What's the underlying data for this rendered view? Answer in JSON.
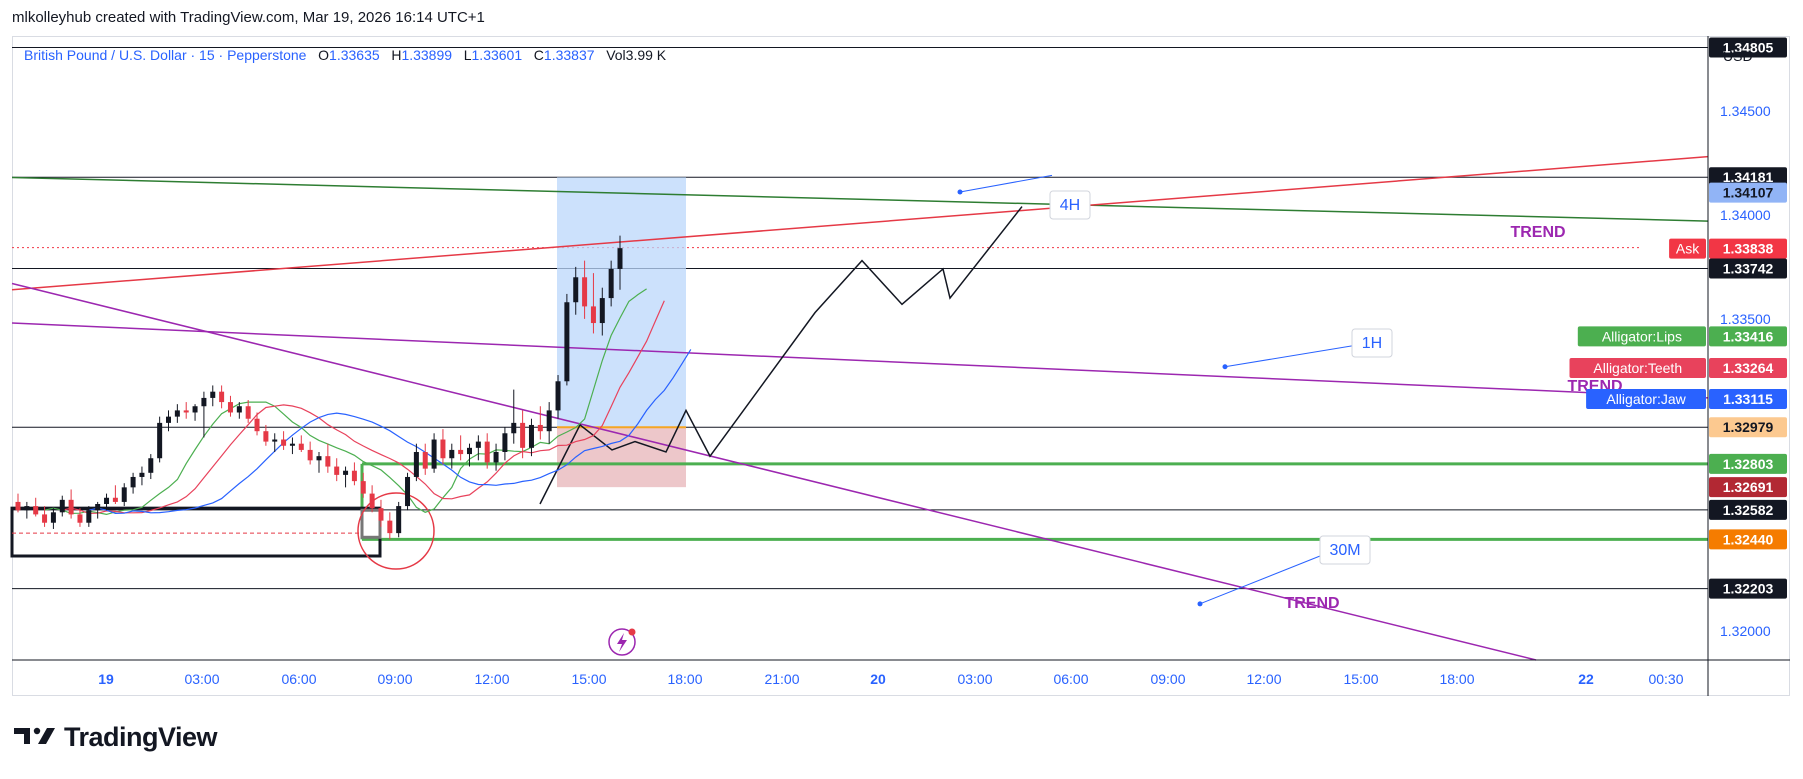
{
  "header": {
    "attribution": "mlkolleyhub created with TradingView.com, Mar 19, 2026 16:14 UTC+1"
  },
  "legend": {
    "symbol": "British Pound / U.S. Dollar · 15 · Pepperstone",
    "o_label": "O",
    "o_value": "1.33635",
    "h_label": "H",
    "h_value": "1.33899",
    "l_label": "L",
    "l_value": "1.33601",
    "c_label": "C",
    "c_value": "1.33837",
    "vol_label": "Vol",
    "vol_value": "3.99 K"
  },
  "price_axis": {
    "currency": "USD"
  },
  "brand": {
    "name": "TradingView"
  },
  "colors": {
    "candle_up": "#131722",
    "candle_down": "#e53946",
    "alligator_lips": "#4caf50",
    "alligator_teeth": "#e8425c",
    "alligator_jaw": "#2962ff",
    "trend_purple": "#9c27b0",
    "trend_red": "#e53946",
    "trend_green": "#2e7d32",
    "zone_green": "#4caf50",
    "long_position_blue": "#bbd7fb",
    "long_position_red": "#e8b9bd"
  },
  "chart_data": {
    "type": "candlestick",
    "symbol": "GBPUSD",
    "interval": "15",
    "ylim": [
      1.3186,
      1.3486
    ],
    "x_ticks": [
      "19",
      "03:00",
      "06:00",
      "09:00",
      "12:00",
      "15:00",
      "18:00",
      "21:00",
      "20",
      "03:00",
      "06:00",
      "09:00",
      "12:00",
      "15:00",
      "18:00",
      "22",
      "00:30"
    ],
    "y_ticks": [
      "1.34500",
      "1.34000",
      "1.33500",
      "1.32000"
    ],
    "price_labels": [
      {
        "value": 1.34805,
        "text": "1.34805",
        "bg": "#131722",
        "fg": "#ffffff"
      },
      {
        "value": 1.34181,
        "text": "1.34181",
        "bg": "#131722",
        "fg": "#ffffff"
      },
      {
        "value": 1.34107,
        "text": "1.34107",
        "bg": "#91b4f6",
        "fg": "#131722"
      },
      {
        "value": 1.33838,
        "text": "1.33838",
        "bg": "#f23645",
        "fg": "#ffffff",
        "tag": "Ask"
      },
      {
        "value": 1.33742,
        "text": "1.33742",
        "bg": "#131722",
        "fg": "#ffffff"
      },
      {
        "value": 1.33416,
        "text": "1.33416",
        "bg": "#4caf50",
        "fg": "#ffffff",
        "tag": "Alligator:Lips"
      },
      {
        "value": 1.33264,
        "text": "1.33264",
        "bg": "#e8425c",
        "fg": "#ffffff",
        "tag": "Alligator:Teeth"
      },
      {
        "value": 1.33115,
        "text": "1.33115",
        "bg": "#2962ff",
        "fg": "#ffffff",
        "tag": "Alligator:Jaw"
      },
      {
        "value": 1.32979,
        "text": "1.32979",
        "bg": "#fcc990",
        "fg": "#131722"
      },
      {
        "value": 1.32803,
        "text": "1.32803",
        "bg": "#4caf50",
        "fg": "#ffffff"
      },
      {
        "value": 1.32691,
        "text": "1.32691",
        "bg": "#b22833",
        "fg": "#ffffff"
      },
      {
        "value": 1.32582,
        "text": "1.32582",
        "bg": "#131722",
        "fg": "#ffffff"
      },
      {
        "value": 1.3244,
        "text": "1.32440",
        "bg": "#f57c00",
        "fg": "#ffffff"
      },
      {
        "value": 1.32203,
        "text": "1.32203",
        "bg": "#131722",
        "fg": "#ffffff"
      }
    ],
    "horizontal_levels": [
      1.34805,
      1.34181,
      1.33742,
      1.32979,
      1.32582,
      1.32203
    ],
    "zone_lines": [
      1.32803,
      1.3244
    ],
    "annotations": [
      {
        "text": "4H",
        "kind": "timeframe"
      },
      {
        "text": "1H",
        "kind": "timeframe"
      },
      {
        "text": "30M",
        "kind": "timeframe"
      },
      {
        "text": "TREND",
        "kind": "trend"
      },
      {
        "text": "TREND",
        "kind": "trend"
      },
      {
        "text": "TREND",
        "kind": "trend"
      }
    ],
    "candles": [
      [
        1.3262,
        1.3266,
        1.3257,
        1.3258
      ],
      [
        1.3258,
        1.3262,
        1.3254,
        1.326
      ],
      [
        1.326,
        1.3264,
        1.3255,
        1.3256
      ],
      [
        1.3256,
        1.326,
        1.325,
        1.3252
      ],
      [
        1.3252,
        1.3259,
        1.3249,
        1.3257
      ],
      [
        1.3257,
        1.3265,
        1.3255,
        1.3263
      ],
      [
        1.3263,
        1.3268,
        1.3254,
        1.3256
      ],
      [
        1.3256,
        1.3259,
        1.325,
        1.3252
      ],
      [
        1.3252,
        1.326,
        1.325,
        1.3258
      ],
      [
        1.3258,
        1.3262,
        1.3254,
        1.3261
      ],
      [
        1.3261,
        1.3266,
        1.3258,
        1.3264
      ],
      [
        1.3264,
        1.327,
        1.3261,
        1.3262
      ],
      [
        1.3262,
        1.3271,
        1.326,
        1.3269
      ],
      [
        1.3269,
        1.3276,
        1.3266,
        1.3274
      ],
      [
        1.3274,
        1.3279,
        1.327,
        1.3276
      ],
      [
        1.3276,
        1.3285,
        1.3273,
        1.3283
      ],
      [
        1.3283,
        1.3303,
        1.3281,
        1.33
      ],
      [
        1.33,
        1.3306,
        1.3296,
        1.3303
      ],
      [
        1.3303,
        1.3309,
        1.33,
        1.3306
      ],
      [
        1.3306,
        1.331,
        1.3302,
        1.3305
      ],
      [
        1.3305,
        1.3309,
        1.3301,
        1.3308
      ],
      [
        1.3308,
        1.3315,
        1.3293,
        1.3312
      ],
      [
        1.3312,
        1.3318,
        1.3308,
        1.3315
      ],
      [
        1.3315,
        1.3318,
        1.3307,
        1.331
      ],
      [
        1.331,
        1.3313,
        1.3303,
        1.3305
      ],
      [
        1.3305,
        1.331,
        1.3302,
        1.3308
      ],
      [
        1.3308,
        1.3311,
        1.33,
        1.3302
      ],
      [
        1.3302,
        1.3305,
        1.3294,
        1.3296
      ],
      [
        1.3296,
        1.3299,
        1.3289,
        1.3291
      ],
      [
        1.3291,
        1.3295,
        1.3286,
        1.3292
      ],
      [
        1.3292,
        1.3296,
        1.3287,
        1.3289
      ],
      [
        1.3289,
        1.3293,
        1.3285,
        1.329
      ],
      [
        1.329,
        1.3294,
        1.3286,
        1.3287
      ],
      [
        1.3287,
        1.3291,
        1.328,
        1.3282
      ],
      [
        1.3282,
        1.3286,
        1.3276,
        1.3284
      ],
      [
        1.3284,
        1.329,
        1.3276,
        1.3279
      ],
      [
        1.3279,
        1.3283,
        1.3272,
        1.3275
      ],
      [
        1.3275,
        1.3279,
        1.3269,
        1.3277
      ],
      [
        1.3277,
        1.3281,
        1.327,
        1.3272
      ],
      [
        1.3272,
        1.3276,
        1.3264,
        1.3266
      ],
      [
        1.3266,
        1.327,
        1.3257,
        1.3259
      ],
      [
        1.3259,
        1.3263,
        1.325,
        1.3253
      ],
      [
        1.3253,
        1.3257,
        1.3244,
        1.3247
      ],
      [
        1.3247,
        1.3262,
        1.3245,
        1.326
      ],
      [
        1.326,
        1.3276,
        1.3258,
        1.3274
      ],
      [
        1.3274,
        1.329,
        1.3272,
        1.3286
      ],
      [
        1.3286,
        1.329,
        1.3275,
        1.3278
      ],
      [
        1.3278,
        1.3295,
        1.3276,
        1.3292
      ],
      [
        1.3292,
        1.3297,
        1.328,
        1.3283
      ],
      [
        1.3283,
        1.329,
        1.3278,
        1.3287
      ],
      [
        1.3287,
        1.3294,
        1.3282,
        1.3285
      ],
      [
        1.3285,
        1.329,
        1.3279,
        1.3288
      ],
      [
        1.3288,
        1.3294,
        1.3282,
        1.3291
      ],
      [
        1.3291,
        1.3295,
        1.3278,
        1.3281
      ],
      [
        1.3281,
        1.329,
        1.3277,
        1.3286
      ],
      [
        1.3286,
        1.3298,
        1.3282,
        1.3295
      ],
      [
        1.3295,
        1.3316,
        1.329,
        1.33
      ],
      [
        1.33,
        1.3306,
        1.3283,
        1.3288
      ],
      [
        1.3288,
        1.3302,
        1.3284,
        1.3299
      ],
      [
        1.3299,
        1.3308,
        1.3292,
        1.3296
      ],
      [
        1.3296,
        1.331,
        1.329,
        1.3306
      ],
      [
        1.3306,
        1.3323,
        1.3302,
        1.332
      ],
      [
        1.332,
        1.3362,
        1.3318,
        1.3358
      ],
      [
        1.3358,
        1.3375,
        1.3352,
        1.337
      ],
      [
        1.337,
        1.3378,
        1.335,
        1.3356
      ],
      [
        1.3356,
        1.3372,
        1.3343,
        1.3348
      ],
      [
        1.3348,
        1.3365,
        1.3342,
        1.336
      ],
      [
        1.336,
        1.3378,
        1.3356,
        1.3374
      ],
      [
        1.3374,
        1.339,
        1.3364,
        1.3384
      ]
    ]
  }
}
